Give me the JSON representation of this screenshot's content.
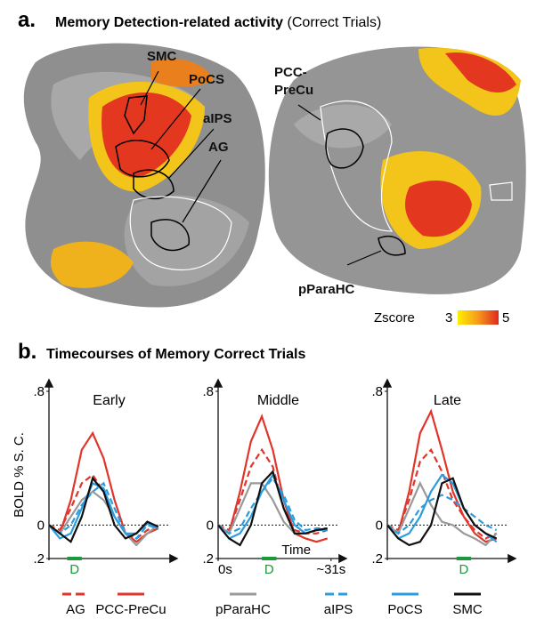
{
  "panel_a": {
    "label": "a.",
    "title": "Memory Detection-related activity",
    "subtitle": "(Correct Trials)",
    "regions": [
      "SMC",
      "PoCS",
      "aIPS",
      "AG",
      "PCC-",
      "PreCu",
      "pParaHC"
    ],
    "colorbar": {
      "label": "Zscore",
      "min": 3,
      "max": 5
    }
  },
  "panel_b": {
    "label": "b.",
    "title": "Timecourses of Memory Correct Trials"
  },
  "legend": [
    {
      "name": "AG",
      "color": "#e0352b",
      "dash": true
    },
    {
      "name": "PCC-PreCu",
      "color": "#e0352b",
      "dash": false
    },
    {
      "name": "pParaHC",
      "color": "#9a9a9a",
      "dash": false
    },
    {
      "name": "aIPS",
      "color": "#2a9de0",
      "dash": true
    },
    {
      "name": "PoCS",
      "color": "#2a9de0",
      "dash": false
    },
    {
      "name": "SMC",
      "color": "#111111",
      "dash": false
    }
  ],
  "chart_data": [
    {
      "type": "line",
      "title": "Early",
      "ylabel": "BOLD % S. C.",
      "x": [
        0,
        3,
        6,
        9,
        12,
        15,
        18,
        21,
        24,
        27,
        30
      ],
      "xlim": [
        0,
        33
      ],
      "ylim": [
        -0.2,
        0.8
      ],
      "yticks": [
        {
          "value": 0.8,
          "label": ".8"
        },
        0,
        {
          "value": -0.2,
          "label": ".2"
        }
      ],
      "stimulus": {
        "label": "D",
        "start": 5,
        "end": 9
      },
      "series": [
        {
          "values": [
            0,
            -0.03,
            0.1,
            0.25,
            0.3,
            0.2,
            0.05,
            -0.05,
            -0.08,
            -0.03,
            0
          ]
        },
        {
          "values": [
            0,
            -0.05,
            0.15,
            0.45,
            0.55,
            0.4,
            0.15,
            -0.05,
            -0.1,
            -0.05,
            -0.02
          ]
        },
        {
          "values": [
            0,
            -0.05,
            0.05,
            0.15,
            0.2,
            0.15,
            0.05,
            -0.05,
            -0.12,
            -0.05,
            0
          ]
        },
        {
          "values": [
            0,
            -0.05,
            0,
            0.12,
            0.2,
            0.25,
            0.1,
            -0.05,
            -0.08,
            0,
            -0.02
          ]
        },
        {
          "values": [
            0,
            -0.08,
            -0.05,
            0.1,
            0.25,
            0.22,
            0.05,
            -0.05,
            -0.05,
            0.01,
            -0.02
          ]
        },
        {
          "values": [
            0,
            -0.05,
            -0.1,
            0.05,
            0.28,
            0.2,
            0,
            -0.08,
            -0.05,
            0.02,
            -0.01
          ]
        }
      ]
    },
    {
      "type": "line",
      "title": "Middle",
      "xlabel": "Time",
      "x": [
        0,
        3,
        6,
        9,
        12,
        15,
        18,
        21,
        24,
        27,
        30
      ],
      "xlim": [
        0,
        33
      ],
      "xticks": [
        {
          "value": 0,
          "label": "0s"
        },
        {
          "value": 31,
          "label": "~31s"
        }
      ],
      "ylim": [
        -0.2,
        0.8
      ],
      "yticks": [
        {
          "value": 0.8,
          "label": ".8"
        },
        0,
        {
          "value": -0.2,
          "label": ".2"
        }
      ],
      "stimulus": {
        "label": "D",
        "start": 12,
        "end": 16
      },
      "series": [
        {
          "values": [
            0,
            -0.03,
            0.15,
            0.35,
            0.45,
            0.35,
            0.1,
            -0.03,
            -0.05,
            -0.05,
            -0.03
          ]
        },
        {
          "values": [
            0,
            -0.05,
            0.2,
            0.5,
            0.65,
            0.45,
            0.15,
            -0.05,
            -0.08,
            -0.1,
            -0.08
          ]
        },
        {
          "values": [
            0,
            -0.05,
            0.1,
            0.25,
            0.25,
            0.15,
            0.02,
            -0.05,
            -0.05,
            -0.03,
            -0.02
          ]
        },
        {
          "values": [
            0,
            -0.05,
            -0.02,
            0.1,
            0.2,
            0.28,
            0.18,
            0.03,
            -0.03,
            -0.02,
            -0.02
          ]
        },
        {
          "values": [
            0,
            -0.08,
            -0.05,
            0.05,
            0.2,
            0.3,
            0.15,
            0,
            -0.05,
            -0.03,
            -0.03
          ]
        },
        {
          "values": [
            0,
            -0.08,
            -0.12,
            0,
            0.25,
            0.32,
            0.1,
            -0.05,
            -0.05,
            -0.03,
            -0.02
          ]
        }
      ]
    },
    {
      "type": "line",
      "title": "Late",
      "x": [
        0,
        3,
        6,
        9,
        12,
        15,
        18,
        21,
        24,
        27,
        30
      ],
      "xlim": [
        0,
        33
      ],
      "ylim": [
        -0.2,
        0.8
      ],
      "yticks": [
        {
          "value": 0.8,
          "label": ".8"
        },
        0,
        {
          "value": -0.2,
          "label": ".2"
        }
      ],
      "stimulus": {
        "label": "D",
        "start": 19,
        "end": 23
      },
      "series": [
        {
          "values": [
            0,
            -0.03,
            0.15,
            0.38,
            0.45,
            0.32,
            0.15,
            0.05,
            -0.03,
            -0.08,
            -0.05
          ]
        },
        {
          "values": [
            0,
            -0.05,
            0.2,
            0.55,
            0.68,
            0.45,
            0.2,
            0.05,
            -0.05,
            -0.1,
            -0.08
          ]
        },
        {
          "values": [
            0,
            -0.05,
            0.1,
            0.25,
            0.12,
            0.02,
            0,
            -0.05,
            -0.08,
            -0.12,
            -0.05
          ]
        },
        {
          "values": [
            0,
            -0.05,
            0,
            0.1,
            0.15,
            0.18,
            0.15,
            0.1,
            0.05,
            0,
            -0.03
          ]
        },
        {
          "values": [
            0,
            -0.08,
            -0.05,
            0.05,
            0.2,
            0.3,
            0.25,
            0.1,
            0,
            -0.05,
            -0.1
          ]
        },
        {
          "values": [
            0,
            -0.08,
            -0.12,
            -0.1,
            0,
            0.25,
            0.28,
            0.1,
            0,
            -0.05,
            -0.08
          ]
        }
      ]
    }
  ]
}
